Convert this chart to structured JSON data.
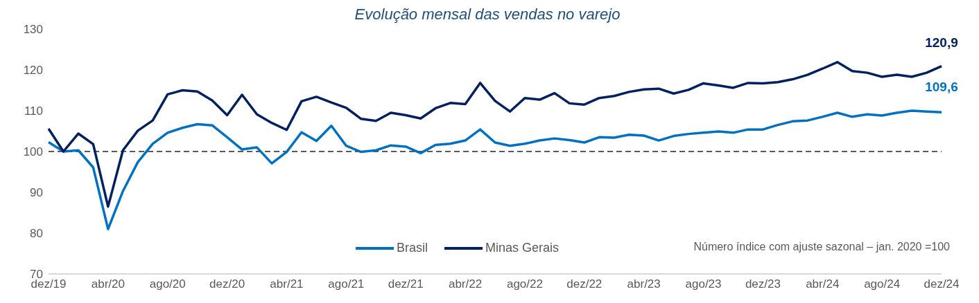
{
  "chart_data": {
    "type": "line",
    "title": "Evolução mensal das vendas no varejo",
    "categories": [
      "dez/19",
      null,
      null,
      null,
      "abr/20",
      null,
      null,
      null,
      "ago/20",
      null,
      null,
      null,
      "dez/20",
      null,
      null,
      null,
      "abr/21",
      null,
      null,
      null,
      "ago/21",
      null,
      null,
      null,
      "dez/21",
      null,
      null,
      null,
      "abr/22",
      null,
      null,
      null,
      "ago/22",
      null,
      null,
      null,
      "dez/22",
      null,
      null,
      null,
      "abr/23",
      null,
      null,
      null,
      "ago/23",
      null,
      null,
      null,
      "dez/23",
      null,
      null,
      null,
      "abr/24",
      null,
      null,
      null,
      "ago/24",
      null,
      null,
      null,
      "dez/24"
    ],
    "series": [
      {
        "name": "Brasil",
        "color": "#0070c0",
        "values": [
          102.3,
          100.0,
          100.3,
          96.1,
          81.0,
          90.3,
          97.4,
          101.9,
          104.6,
          105.8,
          106.7,
          106.4,
          103.5,
          100.5,
          101.0,
          97.1,
          99.9,
          104.7,
          102.6,
          106.3,
          101.4,
          99.9,
          100.3,
          101.5,
          101.2,
          99.6,
          101.6,
          101.9,
          102.7,
          105.4,
          102.2,
          101.4,
          101.9,
          102.7,
          103.2,
          102.8,
          102.2,
          103.5,
          103.4,
          104.1,
          103.9,
          102.7,
          103.8,
          104.3,
          104.6,
          104.9,
          104.6,
          105.4,
          105.4,
          106.5,
          107.4,
          107.6,
          108.5,
          109.5,
          108.5,
          109.1,
          108.8,
          109.5,
          110.0,
          109.8,
          109.6
        ],
        "value_labels": [
          null,
          null,
          null,
          null,
          null,
          null,
          null,
          null,
          null,
          null,
          null,
          null,
          null,
          null,
          null,
          null,
          null,
          null,
          null,
          null,
          null,
          null,
          null,
          null,
          null,
          null,
          null,
          null,
          null,
          null,
          null,
          null,
          null,
          null,
          null,
          null,
          null,
          null,
          null,
          null,
          null,
          null,
          null,
          null,
          null,
          null,
          null,
          null,
          null,
          null,
          null,
          null,
          null,
          null,
          null,
          null,
          null,
          null,
          null,
          null,
          "109,6"
        ]
      },
      {
        "name": "Minas Gerais",
        "color": "#002060",
        "values": [
          105.6,
          100.0,
          104.4,
          101.8,
          86.5,
          100.3,
          105.1,
          107.6,
          114.0,
          115.0,
          114.7,
          112.5,
          108.9,
          113.9,
          109.1,
          107.0,
          105.3,
          112.3,
          113.4,
          112.0,
          110.7,
          108.0,
          107.5,
          109.5,
          108.9,
          108.1,
          110.6,
          111.9,
          111.6,
          116.8,
          112.4,
          109.8,
          113.1,
          112.7,
          114.3,
          111.8,
          111.5,
          113.1,
          113.6,
          114.6,
          115.2,
          115.4,
          114.2,
          115.1,
          116.7,
          116.2,
          115.6,
          116.8,
          116.7,
          117.0,
          117.7,
          118.8,
          120.3,
          121.9,
          119.7,
          119.3,
          118.3,
          118.8,
          118.3,
          119.3,
          120.9
        ],
        "value_labels": [
          null,
          null,
          null,
          null,
          null,
          null,
          null,
          null,
          null,
          null,
          null,
          null,
          null,
          null,
          null,
          null,
          null,
          null,
          null,
          null,
          null,
          null,
          null,
          null,
          null,
          null,
          null,
          null,
          null,
          null,
          null,
          null,
          null,
          null,
          null,
          null,
          null,
          null,
          null,
          null,
          null,
          null,
          null,
          null,
          null,
          null,
          null,
          null,
          null,
          null,
          null,
          null,
          null,
          null,
          null,
          null,
          null,
          null,
          null,
          null,
          "120,9"
        ]
      }
    ],
    "ylim": [
      70,
      130
    ],
    "yticks": [
      70,
      80,
      90,
      100,
      110,
      120,
      130
    ],
    "ref_lines": [
      {
        "axis": "y",
        "value": 100,
        "color": "#595959",
        "line_style": "dashed"
      }
    ],
    "legend": "bottom",
    "grid": false,
    "marker": "none",
    "line_style": "solid",
    "annotations": [
      "Número índice com ajuste sazonal – jan. 2020 =100"
    ]
  }
}
